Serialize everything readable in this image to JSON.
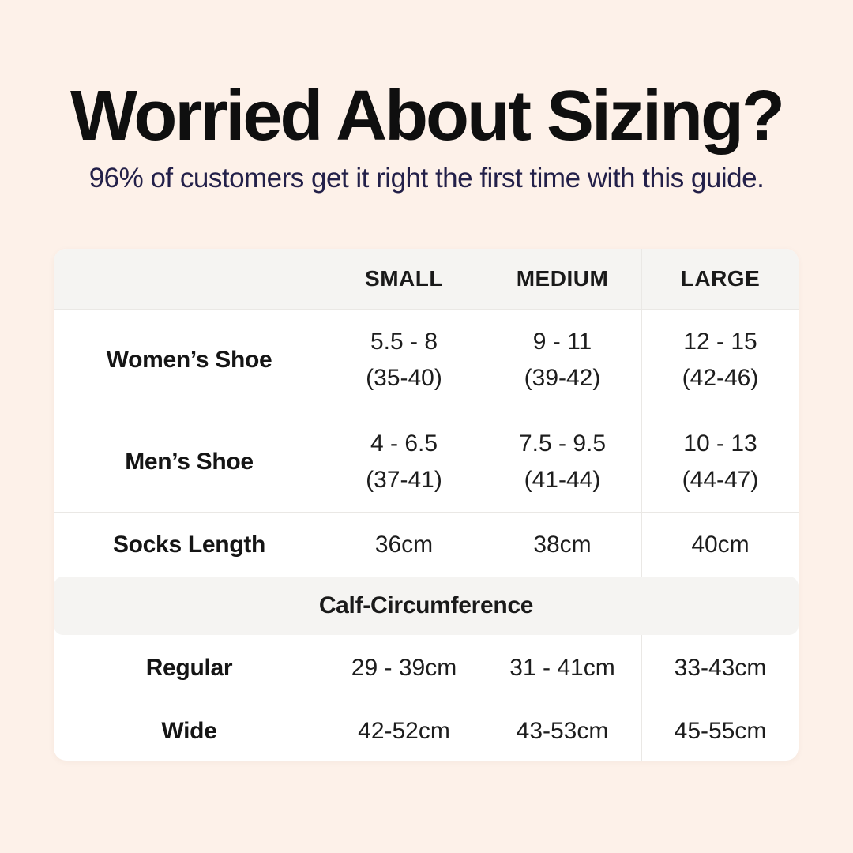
{
  "page": {
    "background_color": "#fdf1e9",
    "title": "Worried About Sizing?",
    "subtitle": "96% of customers get it right the first time with this guide.",
    "title_color": "#0f0f0f",
    "subtitle_color": "#232049"
  },
  "colors": {
    "table_background": "#ffffff",
    "header_band": "#f5f4f2",
    "divider": "#eae8e5",
    "text": "#1d1d1d"
  },
  "chart_data": {
    "type": "table",
    "title": "Worried About Sizing?",
    "subtitle": "96% of customers get it right the first time with this guide.",
    "columns": [
      "",
      "SMALL",
      "MEDIUM",
      "LARGE"
    ],
    "rows": [
      {
        "label": "Women’s Shoe",
        "small": "5.5 - 8\n(35-40)",
        "medium": "9 - 11\n(39-42)",
        "large": "12 - 15\n(42-46)"
      },
      {
        "label": "Men’s Shoe",
        "small": "4 - 6.5\n(37-41)",
        "medium": "7.5 - 9.5\n(41-44)",
        "large": "10 - 13\n(44-47)"
      },
      {
        "label": "Socks Length",
        "small": "36cm",
        "medium": "38cm",
        "large": "40cm"
      }
    ],
    "section_header": "Calf-Circumference",
    "section_rows": [
      {
        "label": "Regular",
        "small": "29 - 39cm",
        "medium": "31 - 41cm",
        "large": "33-43cm"
      },
      {
        "label": "Wide",
        "small": "42-52cm",
        "medium": "43-53cm",
        "large": "45-55cm"
      }
    ]
  }
}
